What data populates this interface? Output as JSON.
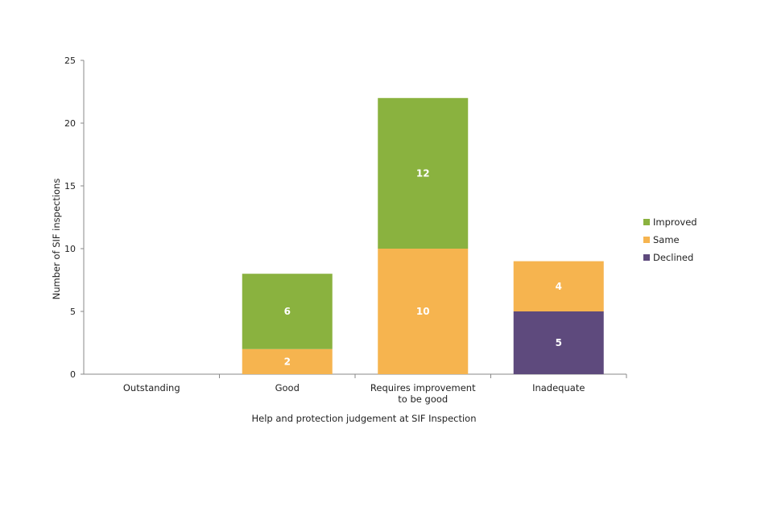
{
  "chart_data": {
    "type": "bar",
    "stacked": true,
    "categories": [
      [
        "Outstanding"
      ],
      [
        "Good"
      ],
      [
        "Requires improvement",
        "to be good"
      ],
      [
        "Inadequate"
      ]
    ],
    "series": [
      {
        "name": "Declined",
        "color": "#5e4a7d",
        "values": [
          0,
          0,
          0,
          5
        ]
      },
      {
        "name": "Same",
        "color": "#f6b44f",
        "values": [
          0,
          2,
          10,
          4
        ]
      },
      {
        "name": "Improved",
        "color": "#8ab23f",
        "values": [
          0,
          6,
          12,
          0
        ]
      }
    ],
    "legend_order": [
      "Improved",
      "Same",
      "Declined"
    ],
    "xlabel": "Help and protection judgement at SIF Inspection",
    "ylabel": "Number of SIF inspections",
    "ylim": [
      0,
      25
    ],
    "yticks": [
      0,
      5,
      10,
      15,
      20,
      25
    ],
    "grid": false,
    "legend_position": "right"
  }
}
